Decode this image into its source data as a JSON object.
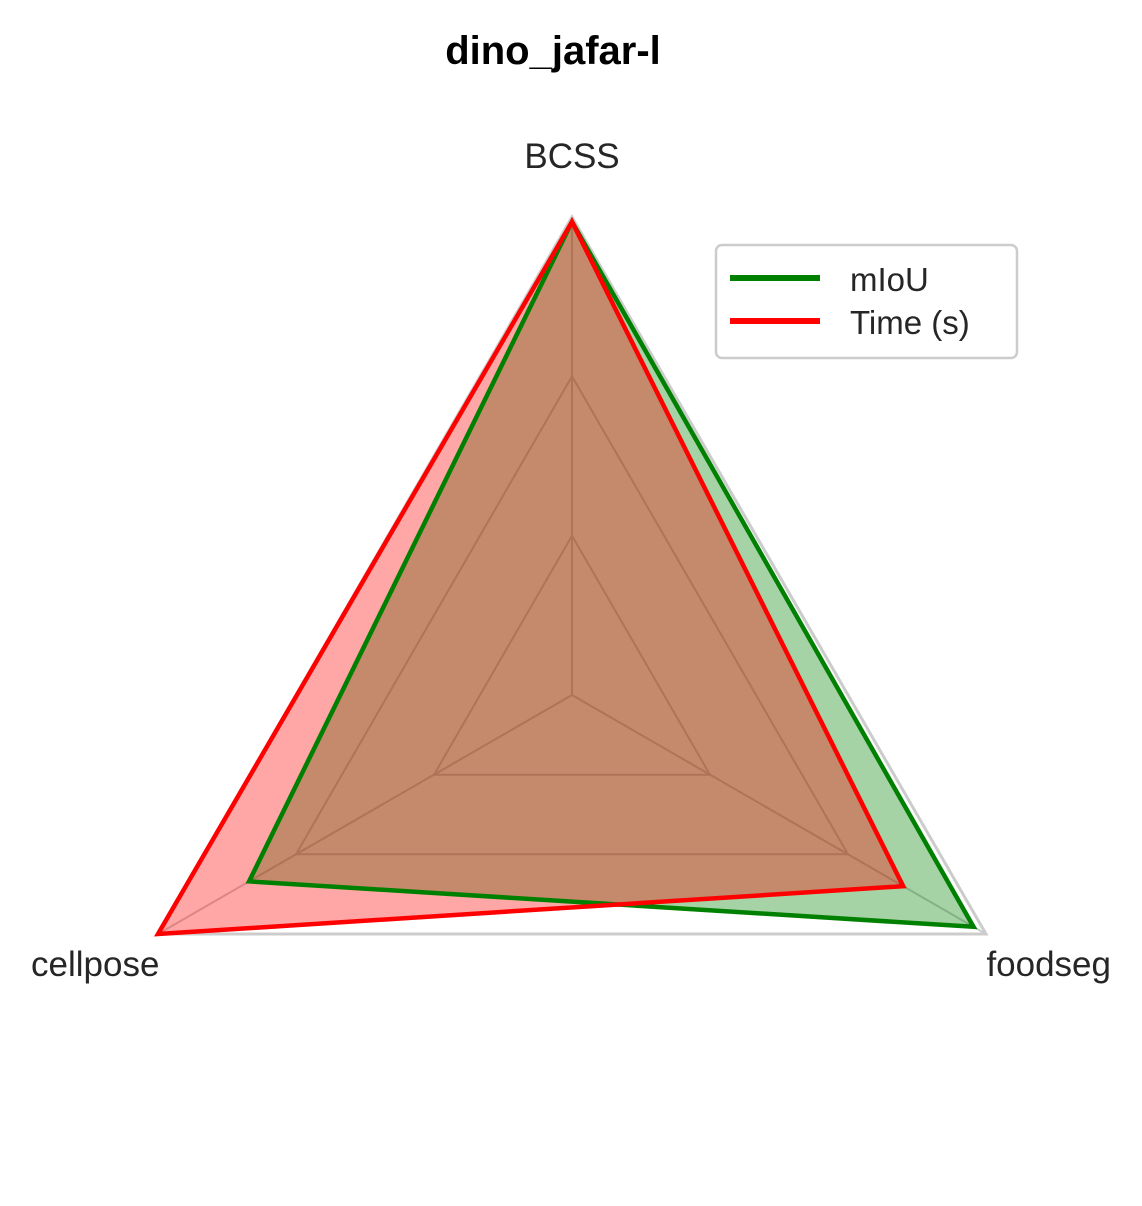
{
  "chart_data": {
    "type": "radar",
    "title": "dino_jafar-l",
    "categories": [
      "BCSS",
      "foodseg",
      "cellpose"
    ],
    "rlim": [
      0,
      1
    ],
    "grid": true,
    "legend_position": "top-right",
    "series": [
      {
        "name": "mIoU",
        "color": "#008000",
        "fill": "rgba(0,128,0,0.35)",
        "values": [
          0.99,
          0.97,
          0.78
        ]
      },
      {
        "name": "Time (s)",
        "color": "#ff0000",
        "fill": "rgba(255,0,0,0.35)",
        "values": [
          0.99,
          0.8,
          1.0
        ]
      }
    ],
    "colors": {
      "grid": "#cccccc",
      "text": "#262626"
    }
  }
}
